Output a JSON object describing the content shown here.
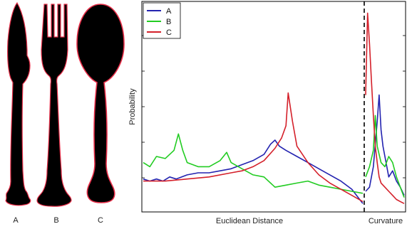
{
  "utensils": [
    {
      "label": "A"
    },
    {
      "label": "B"
    },
    {
      "label": "C"
    }
  ],
  "colors": {
    "A": "#2323b0",
    "B": "#22cc22",
    "C": "#d4202a",
    "silhouette": "#000000",
    "outline": "#e8304a"
  },
  "chart_data": {
    "type": "line",
    "xlabel": "Euclidean Distance",
    "xlabel_right": "Curvature",
    "ylabel": "Probability",
    "legend_position": "top-left",
    "divider": "dashed vertical line separating the two panels",
    "series": [
      {
        "name": "A",
        "panel": "euclidean",
        "x": [
          0,
          0.03,
          0.06,
          0.09,
          0.12,
          0.15,
          0.2,
          0.25,
          0.3,
          0.35,
          0.4,
          0.45,
          0.5,
          0.55,
          0.58,
          0.6,
          0.62,
          0.65,
          0.7,
          0.75,
          0.8,
          0.85,
          0.9,
          0.95,
          1.0
        ],
        "y": [
          0.14,
          0.13,
          0.14,
          0.13,
          0.15,
          0.14,
          0.16,
          0.17,
          0.17,
          0.18,
          0.19,
          0.21,
          0.23,
          0.26,
          0.31,
          0.33,
          0.3,
          0.28,
          0.25,
          0.22,
          0.19,
          0.16,
          0.13,
          0.09,
          0.02
        ]
      },
      {
        "name": "B",
        "panel": "euclidean",
        "x": [
          0,
          0.03,
          0.06,
          0.1,
          0.14,
          0.16,
          0.18,
          0.2,
          0.25,
          0.3,
          0.35,
          0.38,
          0.4,
          0.45,
          0.5,
          0.55,
          0.6,
          0.65,
          0.7,
          0.75,
          0.8,
          0.85,
          0.9,
          0.95,
          1.0
        ],
        "y": [
          0.22,
          0.2,
          0.25,
          0.24,
          0.28,
          0.36,
          0.28,
          0.22,
          0.2,
          0.2,
          0.23,
          0.27,
          0.22,
          0.19,
          0.16,
          0.15,
          0.1,
          0.11,
          0.12,
          0.13,
          0.11,
          0.1,
          0.09,
          0.08,
          0.07
        ]
      },
      {
        "name": "C",
        "panel": "euclidean",
        "x": [
          0,
          0.1,
          0.2,
          0.3,
          0.4,
          0.45,
          0.5,
          0.55,
          0.6,
          0.63,
          0.65,
          0.66,
          0.68,
          0.7,
          0.75,
          0.8,
          0.85,
          0.9,
          0.95,
          1.0
        ],
        "y": [
          0.13,
          0.13,
          0.14,
          0.15,
          0.17,
          0.18,
          0.2,
          0.23,
          0.29,
          0.34,
          0.4,
          0.56,
          0.42,
          0.3,
          0.22,
          0.16,
          0.12,
          0.09,
          0.06,
          0.03
        ]
      },
      {
        "name": "A",
        "panel": "curvature",
        "x": [
          0,
          0.1,
          0.2,
          0.3,
          0.35,
          0.4,
          0.45,
          0.5,
          0.55,
          0.6,
          0.7,
          0.8,
          0.9,
          1.0
        ],
        "y": [
          0.08,
          0.1,
          0.2,
          0.42,
          0.55,
          0.38,
          0.3,
          0.25,
          0.2,
          0.15,
          0.18,
          0.13,
          0.1,
          0.06
        ]
      },
      {
        "name": "B",
        "panel": "curvature",
        "x": [
          0,
          0.1,
          0.2,
          0.25,
          0.3,
          0.35,
          0.4,
          0.5,
          0.6,
          0.7,
          0.8,
          0.9,
          1.0
        ],
        "y": [
          0.15,
          0.2,
          0.28,
          0.45,
          0.3,
          0.26,
          0.22,
          0.2,
          0.25,
          0.22,
          0.15,
          0.1,
          0.05
        ]
      },
      {
        "name": "C",
        "panel": "curvature",
        "x": [
          0,
          0.05,
          0.1,
          0.15,
          0.2,
          0.25,
          0.3,
          0.35,
          0.4,
          0.5,
          0.6,
          0.7,
          0.8,
          0.9,
          1.0
        ],
        "y": [
          0.55,
          0.95,
          0.8,
          0.62,
          0.45,
          0.3,
          0.22,
          0.15,
          0.12,
          0.1,
          0.08,
          0.06,
          0.04,
          0.03,
          0.02
        ]
      }
    ]
  }
}
